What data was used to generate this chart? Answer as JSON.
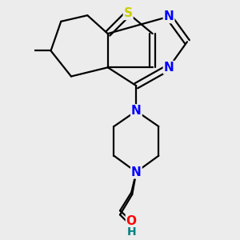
{
  "bg_color": "#ececec",
  "atom_colors": {
    "S": "#cccc00",
    "N": "#0000ff",
    "O": "#ff0000",
    "H": "#008080",
    "C": "#000000"
  },
  "bond_color": "#000000",
  "bond_width": 1.6,
  "figsize": [
    3.0,
    3.0
  ],
  "dpi": 100,
  "xlim": [
    -2.2,
    2.0
  ],
  "ylim": [
    -3.2,
    2.6
  ]
}
